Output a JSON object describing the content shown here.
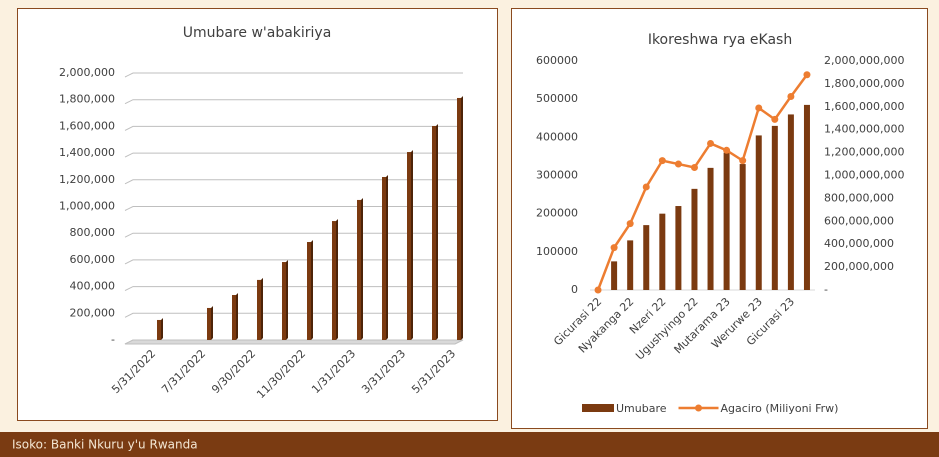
{
  "chart_data": [
    {
      "type": "bar",
      "title": "Umubare w'abakiriya",
      "categories": [
        "5/31/2022",
        null,
        "7/31/2022",
        null,
        "9/30/2022",
        null,
        "11/30/2022",
        null,
        "1/31/2023",
        null,
        "3/31/2023",
        null,
        "5/31/2023"
      ],
      "values": [
        150000,
        null,
        240000,
        337000,
        450000,
        584000,
        734000,
        891000,
        1049000,
        1221000,
        1408000,
        1603000,
        1813000
      ],
      "color": "#7b3a10",
      "ylim": [
        0,
        2000000
      ],
      "yticks": [
        {
          "value": 0,
          "label": "-"
        },
        {
          "value": 200000,
          "label": "200,000"
        },
        {
          "value": 400000,
          "label": "400,000"
        },
        {
          "value": 600000,
          "label": "600,000"
        },
        {
          "value": 800000,
          "label": "800,000"
        },
        {
          "value": 1000000,
          "label": "1,000,000"
        },
        {
          "value": 1200000,
          "label": "1,200,000"
        },
        {
          "value": 1400000,
          "label": "1,400,000"
        },
        {
          "value": 1600000,
          "label": "1,600,000"
        },
        {
          "value": 1800000,
          "label": "1,800,000"
        },
        {
          "value": 2000000,
          "label": "2,000,000"
        }
      ],
      "grid": true
    },
    {
      "type": "combo",
      "title": "Ikoreshwa rya eKash",
      "categories": [
        "Gicurasi 22",
        null,
        "Nyakanga 22",
        null,
        "Nzeri 22",
        null,
        "Ugushyingo 22",
        null,
        "Mutarama 23",
        null,
        "Werurwe 23",
        null,
        "Gicurasi 23",
        null
      ],
      "series": [
        {
          "name": "Umubare",
          "type": "bar",
          "color": "#7b3a10",
          "values": [
            0,
            75000,
            130000,
            170000,
            200000,
            220000,
            265000,
            320000,
            360000,
            330000,
            405000,
            430000,
            460000,
            485000
          ]
        },
        {
          "name": "Agaciro (Miliyoni Frw)",
          "type": "line",
          "axis": "y2",
          "color": "#ed7d31",
          "values": [
            0,
            370000000,
            580000000,
            900000000,
            1130000000,
            1100000000,
            1070000000,
            1280000000,
            1220000000,
            1130000000,
            1590000000,
            1490000000,
            1690000000,
            1880000000
          ]
        }
      ],
      "ylim": [
        0,
        600000
      ],
      "yticks": [
        0,
        100000,
        200000,
        300000,
        400000,
        500000,
        600000
      ],
      "y2lim": [
        0,
        2000000000
      ],
      "y2ticks": [
        {
          "value": 0,
          "label": "-"
        },
        {
          "value": 200000000,
          "label": "200,000,000"
        },
        {
          "value": 400000000,
          "label": "400,000,000"
        },
        {
          "value": 600000000,
          "label": "600,000,000"
        },
        {
          "value": 800000000,
          "label": "800,000,000"
        },
        {
          "value": 1000000000,
          "label": "1,000,000,000"
        },
        {
          "value": 1200000000,
          "label": "1,200,000,000"
        },
        {
          "value": 1400000000,
          "label": "1,400,000,000"
        },
        {
          "value": 1600000000,
          "label": "1,600,000,000"
        },
        {
          "value": 1800000000,
          "label": "1,800,000,000"
        },
        {
          "value": 2000000000,
          "label": "2,000,000,000"
        }
      ],
      "grid": false,
      "legend": "bottom"
    }
  ],
  "footer": {
    "text": "Isoko: Banki Nkuru y'u Rwanda"
  }
}
